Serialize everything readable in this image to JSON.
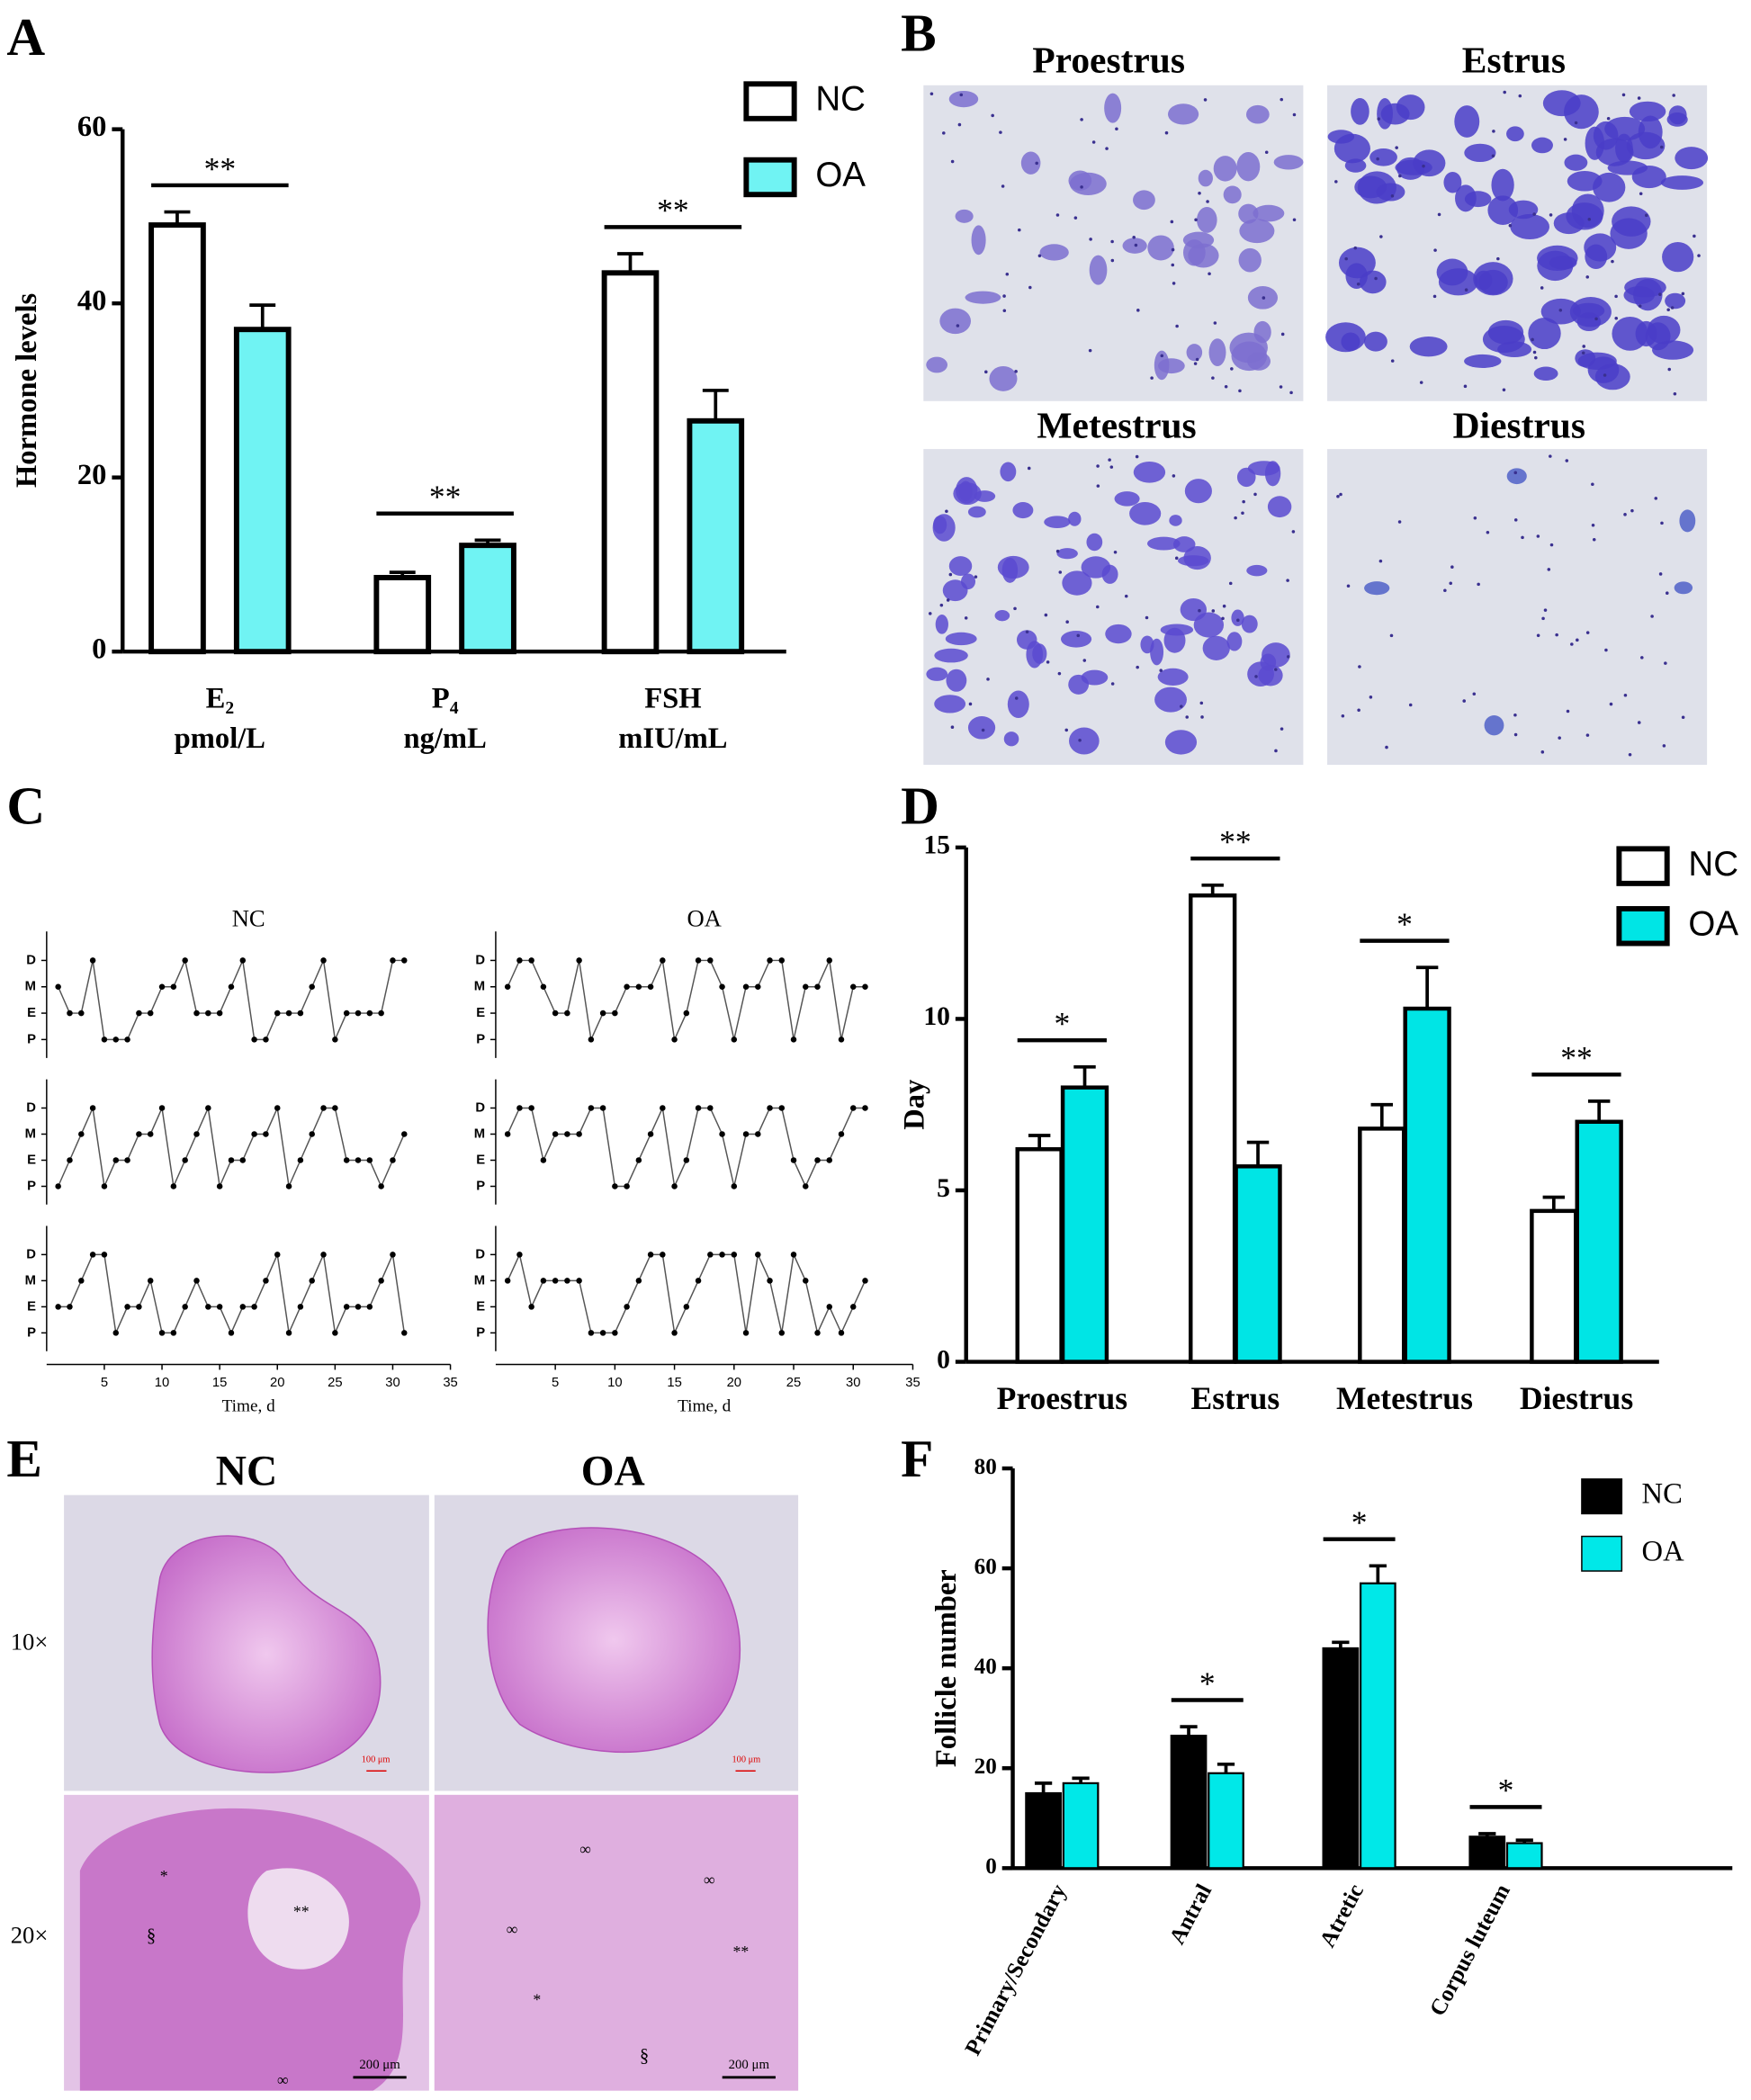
{
  "panel_labels": [
    "A",
    "B",
    "C",
    "D",
    "E",
    "F"
  ],
  "smear_images": [
    {
      "label": "Proestrus"
    },
    {
      "label": "Estrus"
    },
    {
      "label": "Metestrus"
    },
    {
      "label": "Diestrus"
    }
  ],
  "histology": {
    "columns": [
      "NC",
      "OA"
    ],
    "rows": [
      "10×",
      "20×"
    ],
    "scale_bars": [
      "100 μm",
      "100 μm",
      "200 μm",
      "200 μm"
    ],
    "markers": [
      [
        "*",
        "§",
        "**",
        "∞"
      ],
      [
        "∞",
        "∞",
        "∞",
        "**",
        "*",
        "§"
      ]
    ]
  },
  "chart_data": [
    {
      "type": "bar",
      "y_label": "Hormone levels",
      "categories": [
        "E₂",
        "P₄",
        "FSH"
      ],
      "category_units": [
        "pmol/L",
        "ng/mL",
        "mIU/mL"
      ],
      "series": [
        {
          "name": "NC",
          "color": "#ffffff",
          "values": [
            49,
            8.5,
            43.5
          ],
          "errors": [
            1.5,
            0.6,
            2.2
          ]
        },
        {
          "name": "OA",
          "color": "#70f3f3",
          "values": [
            37,
            12.2,
            26.5
          ],
          "errors": [
            2.8,
            0.6,
            3.5
          ]
        }
      ],
      "significance": [
        "**",
        "**",
        "**"
      ],
      "ylim": [
        0,
        60
      ],
      "yticks": [
        0,
        20,
        40,
        60
      ],
      "legend": "upper right"
    },
    {
      "type": "line",
      "title": "NC",
      "x": [
        1,
        2,
        3,
        4,
        5,
        6,
        7,
        8,
        9,
        10,
        11,
        12,
        13,
        14,
        15,
        16,
        17,
        18,
        19,
        20,
        21,
        22,
        23,
        24,
        25,
        26,
        27,
        28,
        29,
        30,
        31
      ],
      "series": [
        {
          "color": "#555555",
          "values": [
            2,
            1,
            1,
            3,
            0,
            0,
            0,
            1,
            1,
            2,
            2,
            3,
            1,
            1,
            1,
            2,
            3,
            0,
            0,
            1,
            1,
            1,
            2,
            3,
            0,
            1,
            1,
            1,
            1,
            3,
            3
          ]
        }
      ],
      "xlim": [
        0,
        35
      ],
      "ylim": [
        -0.7,
        4.1
      ],
      "yticks": [
        {
          "value": 3,
          "label": "D"
        },
        {
          "value": 2,
          "label": "M"
        },
        {
          "value": 1,
          "label": "E"
        },
        {
          "value": 0,
          "label": "P"
        }
      ]
    },
    {
      "type": "line",
      "title": "OA",
      "x": [
        1,
        2,
        3,
        4,
        5,
        6,
        7,
        8,
        9,
        10,
        11,
        12,
        13,
        14,
        15,
        16,
        17,
        18,
        19,
        20,
        21,
        22,
        23,
        24,
        25,
        26,
        27,
        28,
        29,
        30,
        31
      ],
      "series": [
        {
          "color": "#555555",
          "values": [
            2,
            3,
            3,
            2,
            1,
            1,
            3,
            0,
            1,
            1,
            2,
            2,
            2,
            3,
            0,
            1,
            3,
            3,
            2,
            0,
            2,
            2,
            3,
            3,
            0,
            2,
            2,
            3,
            0,
            2,
            2
          ]
        }
      ],
      "xlim": [
        0,
        35
      ],
      "ylim": [
        -0.7,
        4.1
      ],
      "yticks": [
        {
          "value": 3,
          "label": "D"
        },
        {
          "value": 2,
          "label": "M"
        },
        {
          "value": 1,
          "label": "E"
        },
        {
          "value": 0,
          "label": "P"
        }
      ]
    },
    {
      "type": "line",
      "x": [
        1,
        2,
        3,
        4,
        5,
        6,
        7,
        8,
        9,
        10,
        11,
        12,
        13,
        14,
        15,
        16,
        17,
        18,
        19,
        20,
        21,
        22,
        23,
        24,
        25,
        26,
        27,
        28,
        29,
        30,
        31
      ],
      "series": [
        {
          "color": "#555555",
          "values": [
            0,
            1,
            2,
            3,
            0,
            1,
            1,
            2,
            2,
            3,
            0,
            1,
            2,
            3,
            0,
            1,
            1,
            2,
            2,
            3,
            0,
            1,
            2,
            3,
            3,
            1,
            1,
            1,
            0,
            1,
            2
          ]
        }
      ],
      "xlim": [
        0,
        35
      ],
      "ylim": [
        -0.7,
        4.1
      ],
      "yticks": [
        {
          "value": 3,
          "label": "D"
        },
        {
          "value": 2,
          "label": "M"
        },
        {
          "value": 1,
          "label": "E"
        },
        {
          "value": 0,
          "label": "P"
        }
      ]
    },
    {
      "type": "line",
      "x": [
        1,
        2,
        3,
        4,
        5,
        6,
        7,
        8,
        9,
        10,
        11,
        12,
        13,
        14,
        15,
        16,
        17,
        18,
        19,
        20,
        21,
        22,
        23,
        24,
        25,
        26,
        27,
        28,
        29,
        30,
        31
      ],
      "series": [
        {
          "color": "#555555",
          "values": [
            2,
            3,
            3,
            1,
            2,
            2,
            2,
            3,
            3,
            0,
            0,
            1,
            2,
            3,
            0,
            1,
            3,
            3,
            2,
            0,
            2,
            2,
            3,
            3,
            1,
            0,
            1,
            1,
            2,
            3,
            3
          ]
        }
      ],
      "xlim": [
        0,
        35
      ],
      "ylim": [
        -0.7,
        4.1
      ],
      "yticks": [
        {
          "value": 3,
          "label": "D"
        },
        {
          "value": 2,
          "label": "M"
        },
        {
          "value": 1,
          "label": "E"
        },
        {
          "value": 0,
          "label": "P"
        }
      ]
    },
    {
      "type": "line",
      "x_label": "Time, d",
      "x": [
        1,
        2,
        3,
        4,
        5,
        6,
        7,
        8,
        9,
        10,
        11,
        12,
        13,
        14,
        15,
        16,
        17,
        18,
        19,
        20,
        21,
        22,
        23,
        24,
        25,
        26,
        27,
        28,
        29,
        30,
        31
      ],
      "series": [
        {
          "color": "#555555",
          "values": [
            1,
            1,
            2,
            3,
            3,
            0,
            1,
            1,
            2,
            0,
            0,
            1,
            2,
            1,
            1,
            0,
            1,
            1,
            2,
            3,
            0,
            1,
            2,
            3,
            0,
            1,
            1,
            1,
            2,
            3,
            0
          ]
        }
      ],
      "xlim": [
        0,
        35
      ],
      "xticks": [
        5,
        10,
        15,
        20,
        25,
        30,
        35
      ],
      "ylim": [
        -0.7,
        4.1
      ],
      "yticks": [
        {
          "value": 3,
          "label": "D"
        },
        {
          "value": 2,
          "label": "M"
        },
        {
          "value": 1,
          "label": "E"
        },
        {
          "value": 0,
          "label": "P"
        }
      ]
    },
    {
      "type": "line",
      "x_label": "Time, d",
      "x": [
        1,
        2,
        3,
        4,
        5,
        6,
        7,
        8,
        9,
        10,
        11,
        12,
        13,
        14,
        15,
        16,
        17,
        18,
        19,
        20,
        21,
        22,
        23,
        24,
        25,
        26,
        27,
        28,
        29,
        30,
        31
      ],
      "series": [
        {
          "color": "#555555",
          "values": [
            2,
            3,
            1,
            2,
            2,
            2,
            2,
            0,
            0,
            0,
            1,
            2,
            3,
            3,
            0,
            1,
            2,
            3,
            3,
            3,
            0,
            3,
            2,
            0,
            3,
            2,
            0,
            1,
            0,
            1,
            2
          ]
        }
      ],
      "xlim": [
        0,
        35
      ],
      "xticks": [
        5,
        10,
        15,
        20,
        25,
        30,
        35
      ],
      "ylim": [
        -0.7,
        4.1
      ],
      "yticks": [
        {
          "value": 3,
          "label": "D"
        },
        {
          "value": 2,
          "label": "M"
        },
        {
          "value": 1,
          "label": "E"
        },
        {
          "value": 0,
          "label": "P"
        }
      ]
    },
    {
      "type": "bar",
      "y_label": "Day",
      "categories": [
        "Proestrus",
        "Estrus",
        "Metestrus",
        "Diestrus"
      ],
      "series": [
        {
          "name": "NC",
          "color": "#ffffff",
          "values": [
            6.2,
            13.6,
            6.8,
            4.4
          ],
          "errors": [
            0.4,
            0.3,
            0.7,
            0.4
          ]
        },
        {
          "name": "OA",
          "color": "#00e5e5",
          "values": [
            8.0,
            5.7,
            10.3,
            7.0
          ],
          "errors": [
            0.6,
            0.7,
            1.2,
            0.6
          ]
        }
      ],
      "significance": [
        "*",
        "**",
        "*",
        "**"
      ],
      "ylim": [
        0,
        15
      ],
      "yticks": [
        0,
        5,
        10,
        15
      ],
      "legend": "upper right"
    },
    {
      "type": "bar",
      "y_label": "Follicle number",
      "categories": [
        "Primary/Secondary",
        "Antral",
        "Atretic",
        "Corpus luteum"
      ],
      "series": [
        {
          "name": "NC",
          "color": "#000000",
          "values": [
            15,
            26.5,
            44,
            6.3
          ],
          "errors": [
            2,
            1.8,
            1.2,
            0.6
          ]
        },
        {
          "name": "OA",
          "color": "#00e8e8",
          "values": [
            17,
            19,
            57,
            5
          ],
          "errors": [
            1,
            1.8,
            3.5,
            0.6
          ]
        }
      ],
      "significance": [
        null,
        "*",
        "*",
        "*"
      ],
      "ylim": [
        0,
        80
      ],
      "yticks": [
        0,
        20,
        40,
        60,
        80
      ],
      "legend": "upper right"
    }
  ]
}
